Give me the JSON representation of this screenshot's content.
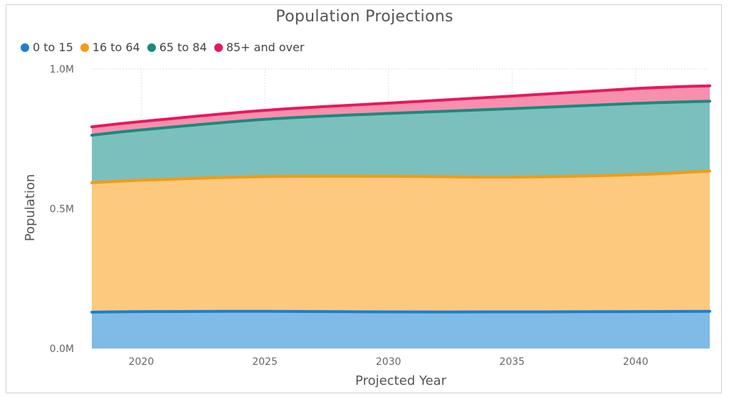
{
  "chart_data": {
    "type": "area",
    "stacked": true,
    "title": "Population Projections",
    "xlabel": "Projected Year",
    "ylabel": "Population",
    "x": [
      2018,
      2020,
      2025,
      2030,
      2035,
      2040,
      2043
    ],
    "xticks": [
      "2020",
      "2025",
      "2030",
      "2035",
      "2040"
    ],
    "xtick_values": [
      2020,
      2025,
      2030,
      2035,
      2040
    ],
    "yticks": [
      "0.0M",
      "0.5M",
      "1.0M"
    ],
    "ytick_values": [
      0,
      0.5,
      1.0
    ],
    "ylim": [
      0,
      1.0
    ],
    "xlim": [
      2018,
      2043
    ],
    "grid": true,
    "legend_position": "top-left",
    "series": [
      {
        "name": "0 to 15",
        "color": "#1a7fd4",
        "fill": "#7fbbe6",
        "values": [
          0.13,
          0.132,
          0.133,
          0.131,
          0.131,
          0.132,
          0.133
        ]
      },
      {
        "name": "16 to 64",
        "color": "#f59a12",
        "fill": "#fdc97f",
        "values": [
          0.463,
          0.47,
          0.482,
          0.485,
          0.482,
          0.49,
          0.502
        ]
      },
      {
        "name": "65 to 84",
        "color": "#1a8a7c",
        "fill": "#7bc0bd",
        "values": [
          0.17,
          0.18,
          0.205,
          0.225,
          0.245,
          0.255,
          0.25
        ]
      },
      {
        "name": "85+ and over",
        "color": "#e8185c",
        "fill": "#f690ae",
        "values": [
          0.03,
          0.03,
          0.032,
          0.037,
          0.045,
          0.053,
          0.055
        ]
      }
    ]
  }
}
